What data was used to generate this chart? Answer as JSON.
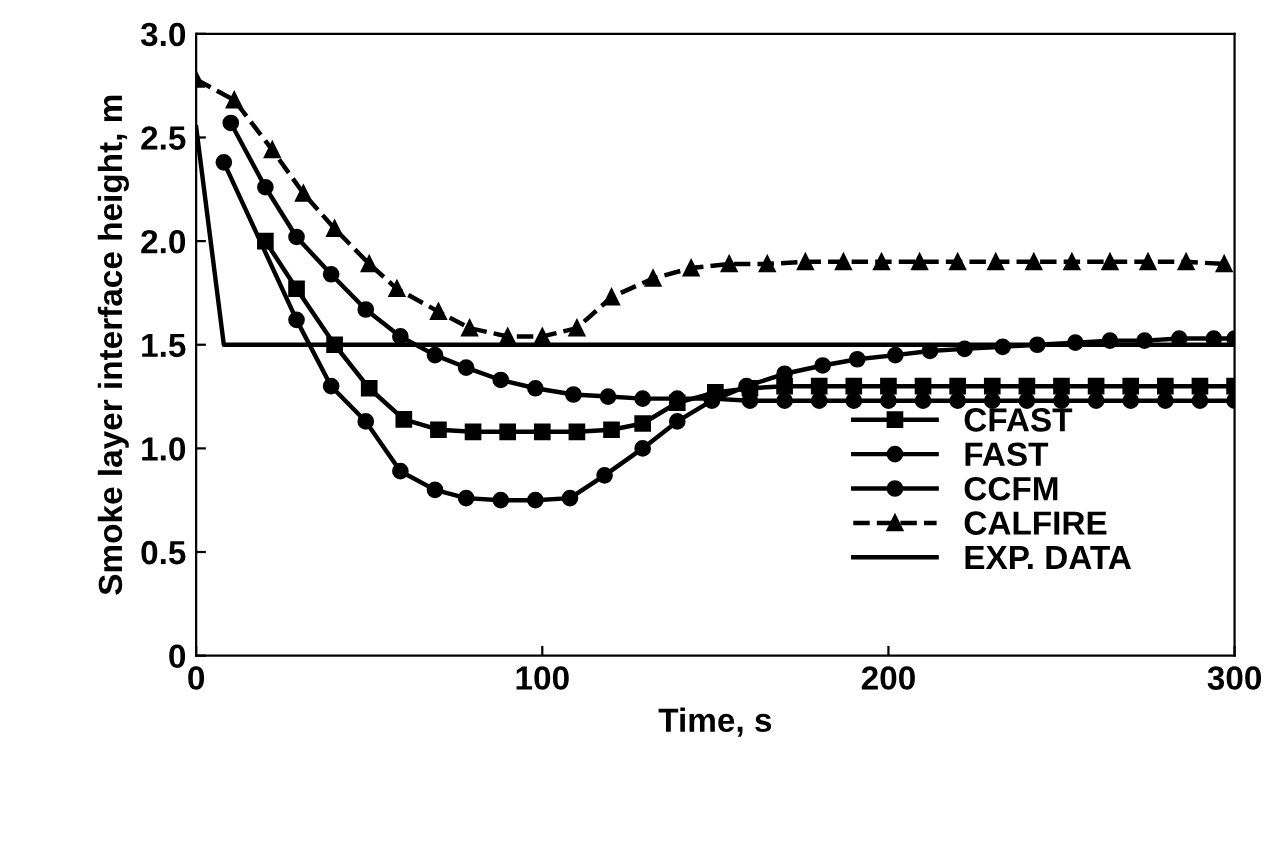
{
  "chart_data": {
    "type": "line",
    "xlabel": "Time, s",
    "ylabel": "Smoke layer interface height, m",
    "xlim": [
      0,
      300
    ],
    "xticks": [
      0,
      100,
      200,
      300
    ],
    "ylim": [
      0,
      3.0
    ],
    "yticks": [
      {
        "value": 0,
        "label": "0"
      },
      {
        "value": 0.5,
        "label": "0.5"
      },
      {
        "value": 1.0,
        "label": "1.0"
      },
      {
        "value": 1.5,
        "label": "1.5"
      },
      {
        "value": 2.0,
        "label": "2.0"
      },
      {
        "value": 2.5,
        "label": "2.5"
      },
      {
        "value": 3.0,
        "label": "3.0"
      }
    ],
    "grid": false,
    "legend": "bottom right",
    "series": [
      {
        "name": "CFAST",
        "color": "#000000",
        "marker": "square",
        "line_style": "solid",
        "x": [
          20,
          29,
          40,
          50,
          60,
          70,
          80,
          90,
          100,
          110,
          120,
          129,
          139,
          150,
          160,
          170,
          180,
          190,
          200,
          210,
          220,
          230,
          240,
          250,
          260,
          270,
          280,
          290,
          300
        ],
        "values": [
          2.0,
          1.77,
          1.5,
          1.29,
          1.14,
          1.09,
          1.08,
          1.08,
          1.08,
          1.08,
          1.09,
          1.12,
          1.22,
          1.27,
          1.29,
          1.3,
          1.3,
          1.3,
          1.3,
          1.3,
          1.3,
          1.3,
          1.3,
          1.3,
          1.3,
          1.3,
          1.3,
          1.3,
          1.3
        ]
      },
      {
        "name": "FAST",
        "color": "#000000",
        "marker": "circle",
        "line_style": "solid",
        "x": [
          8,
          29,
          39,
          49,
          59,
          69,
          78,
          88,
          98,
          108,
          118,
          129,
          139,
          149,
          159,
          170,
          181,
          191,
          202,
          212,
          222,
          233,
          243,
          254,
          264,
          274,
          284,
          294,
          300
        ],
        "values": [
          2.38,
          1.62,
          1.3,
          1.13,
          0.89,
          0.8,
          0.76,
          0.75,
          0.75,
          0.76,
          0.87,
          1.0,
          1.13,
          1.23,
          1.3,
          1.36,
          1.4,
          1.43,
          1.45,
          1.47,
          1.48,
          1.49,
          1.5,
          1.51,
          1.52,
          1.52,
          1.53,
          1.53,
          1.53
        ]
      },
      {
        "name": "CCFM",
        "color": "#000000",
        "marker": "circle",
        "line_style": "solid",
        "x": [
          10,
          20,
          29,
          39,
          49,
          59,
          69,
          78,
          88,
          98,
          109,
          119,
          129,
          139,
          149,
          160,
          170,
          180,
          190,
          200,
          210,
          220,
          230,
          240,
          250,
          260,
          270,
          280,
          290,
          300
        ],
        "values": [
          2.57,
          2.26,
          2.02,
          1.84,
          1.67,
          1.54,
          1.45,
          1.39,
          1.33,
          1.29,
          1.26,
          1.25,
          1.24,
          1.24,
          1.24,
          1.23,
          1.23,
          1.23,
          1.23,
          1.23,
          1.23,
          1.23,
          1.23,
          1.23,
          1.23,
          1.23,
          1.23,
          1.23,
          1.23,
          1.23
        ]
      },
      {
        "name": "CALFIRE",
        "color": "#000000",
        "marker": "triangle",
        "line_style": "dashed",
        "x": [
          0,
          11,
          22,
          31,
          40,
          50,
          58,
          70,
          79,
          90,
          100,
          110,
          120,
          132,
          143,
          154,
          165,
          176,
          187,
          198,
          209,
          220,
          231,
          242,
          253,
          264,
          275,
          286,
          297
        ],
        "values": [
          2.78,
          2.68,
          2.44,
          2.23,
          2.06,
          1.89,
          1.77,
          1.66,
          1.58,
          1.54,
          1.54,
          1.58,
          1.73,
          1.82,
          1.87,
          1.89,
          1.89,
          1.9,
          1.9,
          1.9,
          1.9,
          1.9,
          1.9,
          1.9,
          1.9,
          1.9,
          1.9,
          1.9,
          1.89
        ]
      },
      {
        "name": "EXP. DATA",
        "color": "#000000",
        "marker": "none",
        "line_style": "solid",
        "x": [
          0,
          8,
          300
        ],
        "values": [
          2.55,
          1.5,
          1.5
        ]
      }
    ]
  }
}
